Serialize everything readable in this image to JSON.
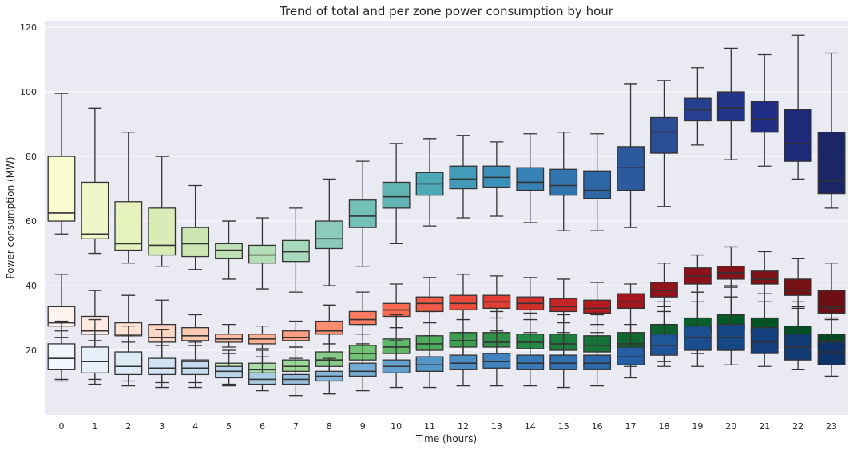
{
  "chart_data": {
    "type": "box",
    "title": "Trend of  total and per zone power consumption by hour",
    "xlabel": "Time (hours)",
    "ylabel": "Power consumption (MW)",
    "ylim": [
      0,
      122
    ],
    "yticks": [
      20,
      40,
      60,
      80,
      100,
      120
    ],
    "categories": [
      "0",
      "1",
      "2",
      "3",
      "4",
      "5",
      "6",
      "7",
      "8",
      "9",
      "10",
      "11",
      "12",
      "13",
      "14",
      "15",
      "16",
      "17",
      "18",
      "19",
      "20",
      "21",
      "22",
      "23"
    ],
    "grid": true,
    "background": "#eaeaf2",
    "series": [
      {
        "palette": [
          "#f7fbcf",
          "#eef7c8",
          "#e5f2bd",
          "#d9ecb6",
          "#cbe6b3",
          "#bde0b4",
          "#b3deb6",
          "#a6d9b9",
          "#8ccbb9",
          "#72c0b6",
          "#61b5b4",
          "#4ea9b7",
          "#429bb9",
          "#3a90b9",
          "#3682b5",
          "#3274ae",
          "#2e67a7",
          "#2c5a9c",
          "#2a4e96",
          "#263f8e",
          "#22338a",
          "#1f2e84",
          "#1d2a7a",
          "#1a2666"
        ],
        "boxes": [
          {
            "min": 56,
            "q1": 60,
            "median": 62.5,
            "q3": 80,
            "max": 99.5
          },
          {
            "min": 50,
            "q1": 54.5,
            "median": 56,
            "q3": 72,
            "max": 95
          },
          {
            "min": 47,
            "q1": 51,
            "median": 53,
            "q3": 66,
            "max": 87.5
          },
          {
            "min": 46,
            "q1": 49.5,
            "median": 52.5,
            "q3": 64,
            "max": 80
          },
          {
            "min": 45,
            "q1": 49,
            "median": 53,
            "q3": 58,
            "max": 71
          },
          {
            "min": 42,
            "q1": 48.5,
            "median": 51,
            "q3": 53,
            "max": 60
          },
          {
            "min": 39,
            "q1": 47,
            "median": 49.5,
            "q3": 52.5,
            "max": 61
          },
          {
            "min": 38,
            "q1": 47.5,
            "median": 50.5,
            "q3": 54,
            "max": 64
          },
          {
            "min": 40,
            "q1": 51.5,
            "median": 54.5,
            "q3": 60,
            "max": 73
          },
          {
            "min": 46,
            "q1": 58,
            "median": 61.5,
            "q3": 66.5,
            "max": 78.5
          },
          {
            "min": 53,
            "q1": 64,
            "median": 67.5,
            "q3": 72,
            "max": 84
          },
          {
            "min": 58.5,
            "q1": 68,
            "median": 71.5,
            "q3": 75,
            "max": 85.5
          },
          {
            "min": 61,
            "q1": 70,
            "median": 73,
            "q3": 77,
            "max": 86.5
          },
          {
            "min": 61.5,
            "q1": 70.5,
            "median": 73.5,
            "q3": 77,
            "max": 84.5
          },
          {
            "min": 59.5,
            "q1": 69.5,
            "median": 72,
            "q3": 76.5,
            "max": 87
          },
          {
            "min": 57,
            "q1": 68,
            "median": 71,
            "q3": 76,
            "max": 87.5
          },
          {
            "min": 57,
            "q1": 67,
            "median": 69.5,
            "q3": 75.5,
            "max": 87
          },
          {
            "min": 58,
            "q1": 69.5,
            "median": 76.5,
            "q3": 83,
            "max": 102.5
          },
          {
            "min": 64.5,
            "q1": 81,
            "median": 87.5,
            "q3": 92,
            "max": 103.5
          },
          {
            "min": 83.5,
            "q1": 91,
            "median": 94.5,
            "q3": 98,
            "max": 107.5
          },
          {
            "min": 79,
            "q1": 91,
            "median": 95,
            "q3": 100,
            "max": 113.5
          },
          {
            "min": 77,
            "q1": 87.5,
            "median": 91.5,
            "q3": 97,
            "max": 111.5
          },
          {
            "min": 73,
            "q1": 78.5,
            "median": 84,
            "q3": 94.5,
            "max": 117.5
          },
          {
            "min": 64,
            "q1": 68.5,
            "median": 72.5,
            "q3": 87.5,
            "max": 112
          }
        ]
      },
      {
        "palette": [
          "#fef2ee",
          "#feeae1",
          "#fee2d4",
          "#fdd6c3",
          "#fccab3",
          "#fcbda3",
          "#fcaf93",
          "#fc9f81",
          "#fb8e70",
          "#fb7c60",
          "#f86a52",
          "#f15a47",
          "#ea4b3d",
          "#e03e33",
          "#d32f2a",
          "#c42524",
          "#b51c1f",
          "#a3171d",
          "#93141b",
          "#8c1319",
          "#851218",
          "#7d1116",
          "#761015",
          "#6e0f13"
        ],
        "boxes": [
          {
            "min": 24,
            "q1": 27.5,
            "median": 28.5,
            "q3": 33.5,
            "max": 43.5
          },
          {
            "min": 23,
            "q1": 25,
            "median": 26,
            "q3": 30.5,
            "max": 38.5
          },
          {
            "min": 22.5,
            "q1": 24.5,
            "median": 25,
            "q3": 28.5,
            "max": 37
          },
          {
            "min": 21.5,
            "q1": 22.5,
            "median": 24,
            "q3": 28,
            "max": 35.5
          },
          {
            "min": 21.5,
            "q1": 23,
            "median": 24.5,
            "q3": 27,
            "max": 31
          },
          {
            "min": 21,
            "q1": 22.5,
            "median": 23.5,
            "q3": 25,
            "max": 28
          },
          {
            "min": 20.5,
            "q1": 22,
            "median": 23.5,
            "q3": 25,
            "max": 27.5
          },
          {
            "min": 21,
            "q1": 23,
            "median": 24,
            "q3": 26,
            "max": 29
          },
          {
            "min": 22,
            "q1": 25,
            "median": 26,
            "q3": 29,
            "max": 34
          },
          {
            "min": 25,
            "q1": 28,
            "median": 29.5,
            "q3": 32,
            "max": 38
          },
          {
            "min": 27,
            "q1": 30.5,
            "median": 32.5,
            "q3": 34.5,
            "max": 40.5
          },
          {
            "min": 28.5,
            "q1": 32,
            "median": 34.5,
            "q3": 36.5,
            "max": 42.5
          },
          {
            "min": 29.5,
            "q1": 32.5,
            "median": 34.5,
            "q3": 37,
            "max": 43.5
          },
          {
            "min": 30,
            "q1": 33,
            "median": 35,
            "q3": 37,
            "max": 43
          },
          {
            "min": 29.5,
            "q1": 32.5,
            "median": 34.5,
            "q3": 36.5,
            "max": 42.5
          },
          {
            "min": 28.5,
            "q1": 32,
            "median": 33.5,
            "q3": 36,
            "max": 42
          },
          {
            "min": 28,
            "q1": 31.5,
            "median": 33,
            "q3": 35.5,
            "max": 41
          },
          {
            "min": 33,
            "q1": 33,
            "median": 35,
            "q3": 37.5,
            "max": 40.5
          },
          {
            "min": 33.5,
            "q1": 36.5,
            "median": 38.5,
            "q3": 41,
            "max": 47
          },
          {
            "min": 38,
            "q1": 40.5,
            "median": 43,
            "q3": 45.5,
            "max": 49.5
          },
          {
            "min": 39.5,
            "q1": 42,
            "median": 44,
            "q3": 46,
            "max": 52
          },
          {
            "min": 37.5,
            "q1": 40.5,
            "median": 42,
            "q3": 44.5,
            "max": 50.5
          },
          {
            "min": 33.5,
            "q1": 37,
            "median": 38.5,
            "q3": 42,
            "max": 48.5
          },
          {
            "min": 29.5,
            "q1": 31.5,
            "median": 33.5,
            "q3": 38.5,
            "max": 47
          }
        ]
      },
      {
        "palette": [
          "#f4faf2",
          "#edf8ea",
          "#e5f5e0",
          "#d9f0d3",
          "#cbebc5",
          "#bce4b5",
          "#acdda6",
          "#9ad696",
          "#87cb87",
          "#74c476",
          "#5fb868",
          "#4bad5b",
          "#3d9d52",
          "#318f49",
          "#238b45",
          "#1d7d3f",
          "#187339",
          "#116932",
          "#0c632e",
          "#075f2b",
          "#045a28",
          "#035425",
          "#024f22",
          "#02491f"
        ],
        "boxes": [
          {
            "min": 11,
            "q1": 14,
            "median": 17,
            "q3": 20.5,
            "max": 26
          },
          {
            "min": 11,
            "q1": 14,
            "median": 16.5,
            "q3": 19.5,
            "max": 25
          },
          {
            "min": 10.5,
            "q1": 13.5,
            "median": 15.5,
            "q3": 18,
            "max": 24.5
          },
          {
            "min": 10,
            "q1": 13,
            "median": 15,
            "q3": 17.5,
            "max": 24
          },
          {
            "min": 10,
            "q1": 13,
            "median": 15,
            "q3": 17,
            "max": 22.5
          },
          {
            "min": 9.5,
            "q1": 12.5,
            "median": 14,
            "q3": 16,
            "max": 20
          },
          {
            "min": 9.5,
            "q1": 12.5,
            "median": 14,
            "q3": 16,
            "max": 20
          },
          {
            "min": 10,
            "q1": 13.5,
            "median": 15,
            "q3": 17,
            "max": 21
          },
          {
            "min": 11.5,
            "q1": 15,
            "median": 17,
            "q3": 19.5,
            "max": 25
          },
          {
            "min": 13,
            "q1": 17,
            "median": 19,
            "q3": 21.5,
            "max": 28
          },
          {
            "min": 15,
            "q1": 19,
            "median": 21,
            "q3": 23.5,
            "max": 31
          },
          {
            "min": 15.5,
            "q1": 20,
            "median": 22,
            "q3": 24.5,
            "max": 32
          },
          {
            "min": 16,
            "q1": 21,
            "median": 23,
            "q3": 25.5,
            "max": 32.5
          },
          {
            "min": 16,
            "q1": 21,
            "median": 22.5,
            "q3": 25.5,
            "max": 32
          },
          {
            "min": 15.5,
            "q1": 20.5,
            "median": 22.5,
            "q3": 25,
            "max": 31.5
          },
          {
            "min": 15,
            "q1": 20,
            "median": 22,
            "q3": 25,
            "max": 31
          },
          {
            "min": 15,
            "q1": 19.5,
            "median": 21.5,
            "q3": 24.5,
            "max": 31
          },
          {
            "min": 15,
            "q1": 20,
            "median": 22,
            "q3": 25.5,
            "max": 33
          },
          {
            "min": 16.5,
            "q1": 23,
            "median": 25,
            "q3": 28,
            "max": 35
          },
          {
            "min": 19,
            "q1": 25.5,
            "median": 27.5,
            "q3": 30,
            "max": 38
          },
          {
            "min": 20,
            "q1": 26.5,
            "median": 28,
            "q3": 31,
            "max": 40
          },
          {
            "min": 19.5,
            "q1": 25,
            "median": 27,
            "q3": 30,
            "max": 37.5
          },
          {
            "min": 17.5,
            "q1": 23,
            "median": 25,
            "q3": 27.5,
            "max": 35
          },
          {
            "min": 16,
            "q1": 21,
            "median": 23,
            "q3": 25,
            "max": 33
          }
        ]
      },
      {
        "palette": [
          "#f0f6fb",
          "#e7f0f9",
          "#dceaf6",
          "#d1e2f2",
          "#c6dbef",
          "#b8d4ea",
          "#a9cce5",
          "#97c0df",
          "#85b6d9",
          "#73abd4",
          "#63a0ce",
          "#5596c8",
          "#4a8cc2",
          "#4082bd",
          "#3779b8",
          "#3070b3",
          "#2a67ab",
          "#245ea3",
          "#1f5699",
          "#1a4e8f",
          "#164786",
          "#13407c",
          "#103a72",
          "#0d3268"
        ],
        "boxes": [
          {
            "min": 10.5,
            "q1": 14,
            "median": 17.5,
            "q3": 22,
            "max": 29
          },
          {
            "min": 9.5,
            "q1": 13,
            "median": 16.5,
            "q3": 21,
            "max": 29.5
          },
          {
            "min": 9,
            "q1": 12.5,
            "median": 15,
            "q3": 19.5,
            "max": 27.5
          },
          {
            "min": 8.5,
            "q1": 12.5,
            "median": 14.5,
            "q3": 17.5,
            "max": 26.5
          },
          {
            "min": 8.5,
            "q1": 12.5,
            "median": 14.5,
            "q3": 16.5,
            "max": 21.5
          },
          {
            "min": 9,
            "q1": 11.5,
            "median": 13.5,
            "q3": 15,
            "max": 19
          },
          {
            "min": 7.5,
            "q1": 9.5,
            "median": 11,
            "q3": 13,
            "max": 18
          },
          {
            "min": 6,
            "q1": 9.5,
            "median": 11,
            "q3": 12.5,
            "max": 17.5
          },
          {
            "min": 6.5,
            "q1": 10.5,
            "median": 12,
            "q3": 13.5,
            "max": 17.5
          },
          {
            "min": 7.5,
            "q1": 12,
            "median": 13.5,
            "q3": 16,
            "max": 22
          },
          {
            "min": 8.5,
            "q1": 13,
            "median": 15,
            "q3": 17,
            "max": 23
          },
          {
            "min": 8.5,
            "q1": 13.5,
            "median": 15.5,
            "q3": 18,
            "max": 24.5
          },
          {
            "min": 9,
            "q1": 14,
            "median": 16,
            "q3": 18.5,
            "max": 25.5
          },
          {
            "min": 9,
            "q1": 14.5,
            "median": 16.5,
            "q3": 19,
            "max": 26
          },
          {
            "min": 9,
            "q1": 14,
            "median": 16,
            "q3": 18.5,
            "max": 25.5
          },
          {
            "min": 8.5,
            "q1": 14,
            "median": 16,
            "q3": 18.5,
            "max": 25.5
          },
          {
            "min": 9,
            "q1": 14,
            "median": 16,
            "q3": 18.5,
            "max": 25.5
          },
          {
            "min": 11.5,
            "q1": 15.5,
            "median": 18,
            "q3": 21,
            "max": 28
          },
          {
            "min": 15,
            "q1": 18.5,
            "median": 21.5,
            "q3": 25,
            "max": 32
          },
          {
            "min": 15,
            "q1": 20,
            "median": 24,
            "q3": 27.5,
            "max": 35
          },
          {
            "min": 15.5,
            "q1": 20,
            "median": 24,
            "q3": 28,
            "max": 36.5
          },
          {
            "min": 15,
            "q1": 19,
            "median": 22.5,
            "q3": 27,
            "max": 35
          },
          {
            "min": 14,
            "q1": 17,
            "median": 21,
            "q3": 25,
            "max": 33
          },
          {
            "min": 12,
            "q1": 15.5,
            "median": 19.5,
            "q3": 22.5,
            "max": 30
          }
        ]
      }
    ]
  }
}
